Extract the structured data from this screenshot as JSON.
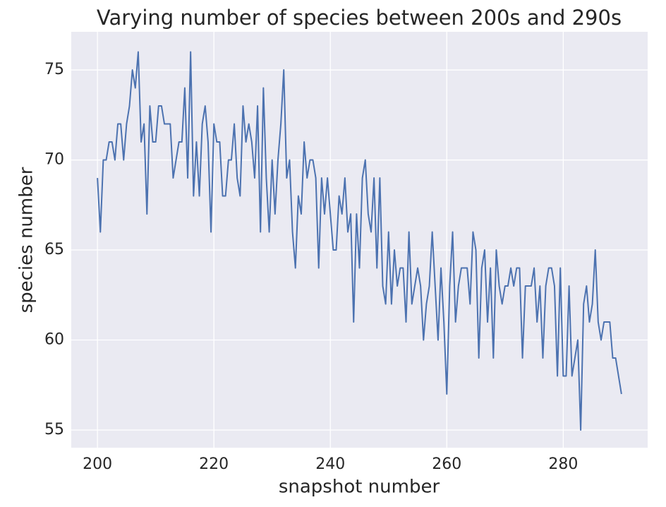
{
  "chart_data": {
    "type": "line",
    "title": "Varying number of species between 200s and 290s",
    "x_label": "snapshot number",
    "y_label": "species number",
    "x": [
      200,
      200.5,
      201,
      201.5,
      202,
      202.5,
      203,
      203.5,
      204,
      204.5,
      205,
      205.5,
      206,
      206.5,
      207,
      207.5,
      208,
      208.5,
      209,
      209.5,
      210,
      210.5,
      211,
      211.5,
      212,
      212.5,
      213,
      213.5,
      214,
      214.5,
      215,
      215.5,
      216,
      216.5,
      217,
      217.5,
      218,
      218.5,
      219,
      219.5,
      220,
      220.5,
      221,
      221.5,
      222,
      222.5,
      223,
      223.5,
      224,
      224.5,
      225,
      225.5,
      226,
      226.5,
      227,
      227.5,
      228,
      228.5,
      229,
      229.5,
      230,
      230.5,
      231,
      231.5,
      232,
      232.5,
      233,
      233.5,
      234,
      234.5,
      235,
      235.5,
      236,
      236.5,
      237,
      237.5,
      238,
      238.5,
      239,
      239.5,
      240,
      240.5,
      241,
      241.5,
      242,
      242.5,
      243,
      243.5,
      244,
      244.5,
      245,
      245.5,
      246,
      246.5,
      247,
      247.5,
      248,
      248.5,
      249,
      249.5,
      250,
      250.5,
      251,
      251.5,
      252,
      252.5,
      253,
      253.5,
      254,
      254.5,
      255,
      255.5,
      256,
      256.5,
      257,
      257.5,
      258,
      258.5,
      259,
      259.5,
      260,
      260.5,
      261,
      261.5,
      262,
      262.5,
      263,
      263.5,
      264,
      264.5,
      265,
      265.5,
      266,
      266.5,
      267,
      267.5,
      268,
      268.5,
      269,
      269.5,
      270,
      270.5,
      271,
      271.5,
      272,
      272.5,
      273,
      273.5,
      274,
      274.5,
      275,
      275.5,
      276,
      276.5,
      277,
      277.5,
      278,
      278.5,
      279,
      279.5,
      280,
      280.5,
      281,
      281.5,
      282,
      282.5,
      283,
      283.5,
      284,
      284.5,
      285,
      285.5,
      286,
      286.5,
      287,
      287.5,
      288,
      288.5,
      289,
      289.5,
      290
    ],
    "series": [
      {
        "name": "species",
        "color": "#4c72b0",
        "values": [
          69,
          66,
          70,
          70,
          71,
          71,
          70,
          72,
          72,
          70,
          72,
          73,
          75,
          74,
          76,
          71,
          72,
          67,
          73,
          71,
          71,
          73,
          73,
          72,
          72,
          72,
          69,
          70,
          71,
          71,
          74,
          69,
          76,
          68,
          71,
          68,
          72,
          73,
          71,
          66,
          72,
          71,
          71,
          68,
          68,
          70,
          70,
          72,
          69,
          68,
          73,
          71,
          72,
          71,
          69,
          73,
          66,
          74,
          69,
          66,
          70,
          67,
          70,
          72,
          75,
          69,
          70,
          66,
          64,
          68,
          67,
          71,
          69,
          70,
          70,
          69,
          64,
          69,
          67,
          69,
          67,
          65,
          65,
          68,
          67,
          69,
          66,
          67,
          61,
          67,
          64,
          69,
          70,
          67,
          66,
          69,
          64,
          69,
          63,
          62,
          66,
          62,
          65,
          63,
          64,
          64,
          61,
          66,
          62,
          63,
          64,
          63,
          60,
          62,
          63,
          66,
          63,
          60,
          64,
          61,
          57,
          63,
          66,
          61,
          63,
          64,
          64,
          64,
          62,
          66,
          65,
          59,
          64,
          65,
          61,
          64,
          59,
          65,
          63,
          62,
          63,
          63,
          64,
          63,
          64,
          64,
          59,
          63,
          63,
          63,
          64,
          61,
          63,
          59,
          63,
          64,
          64,
          63,
          58,
          64,
          58,
          58,
          63,
          58,
          59,
          60,
          55,
          62,
          63,
          61,
          62,
          65,
          61,
          60,
          61,
          61,
          61,
          59,
          59,
          58,
          57
        ]
      }
    ],
    "xlim": [
      195.5,
      294.5
    ],
    "xticks": [
      200,
      220,
      240,
      260,
      280
    ],
    "ylim": [
      54.02,
      77.12
    ],
    "yticks": [
      55,
      60,
      65,
      70,
      75
    ],
    "grid": true
  }
}
